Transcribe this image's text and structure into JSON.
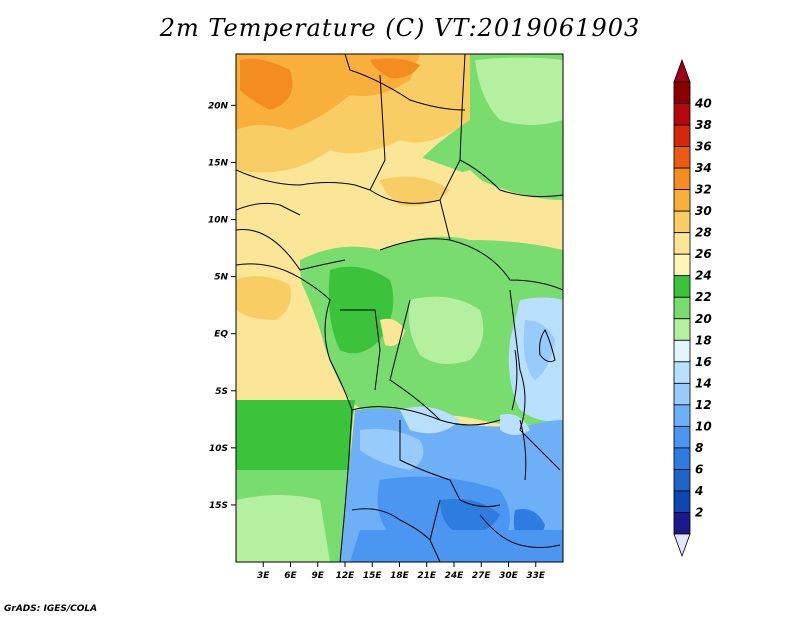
{
  "title": "2m Temperature (C) VT:2019061903",
  "credit": "GrADS: IGES/COLA",
  "map": {
    "lon_range": [
      0,
      36
    ],
    "lat_range": [
      -20,
      24.5
    ],
    "lon_ticks": [
      3,
      6,
      9,
      12,
      15,
      18,
      21,
      24,
      27,
      30,
      33
    ],
    "lon_tick_labels": [
      "3E",
      "6E",
      "9E",
      "12E",
      "15E",
      "18E",
      "21E",
      "24E",
      "27E",
      "30E",
      "33E"
    ],
    "lat_ticks": [
      20,
      15,
      10,
      5,
      0,
      -5,
      -10,
      -15
    ],
    "lat_tick_labels": [
      "20N",
      "15N",
      "10N",
      "5N",
      "EQ",
      "5S",
      "10S",
      "15S"
    ]
  },
  "colorbar": {
    "levels": [
      "2",
      "4",
      "6",
      "8",
      "10",
      "12",
      "14",
      "16",
      "18",
      "20",
      "22",
      "24",
      "26",
      "28",
      "30",
      "32",
      "34",
      "36",
      "38",
      "40"
    ],
    "colors": [
      "#1a1a8c",
      "#0d47b0",
      "#1e64c8",
      "#2d7de0",
      "#4a96f0",
      "#6eb0f8",
      "#96cbfb",
      "#b8e0fd",
      "#e0f5ff",
      "#b4f0a0",
      "#78dc6e",
      "#3cc33c",
      "#fff5b4",
      "#fbe596",
      "#f8cd64",
      "#f8af3c",
      "#f48c22",
      "#ed5a14",
      "#d7260e",
      "#b4080a",
      "#8c0000"
    ],
    "under_color": "#e6e6fa",
    "over_color": "#a00014"
  }
}
